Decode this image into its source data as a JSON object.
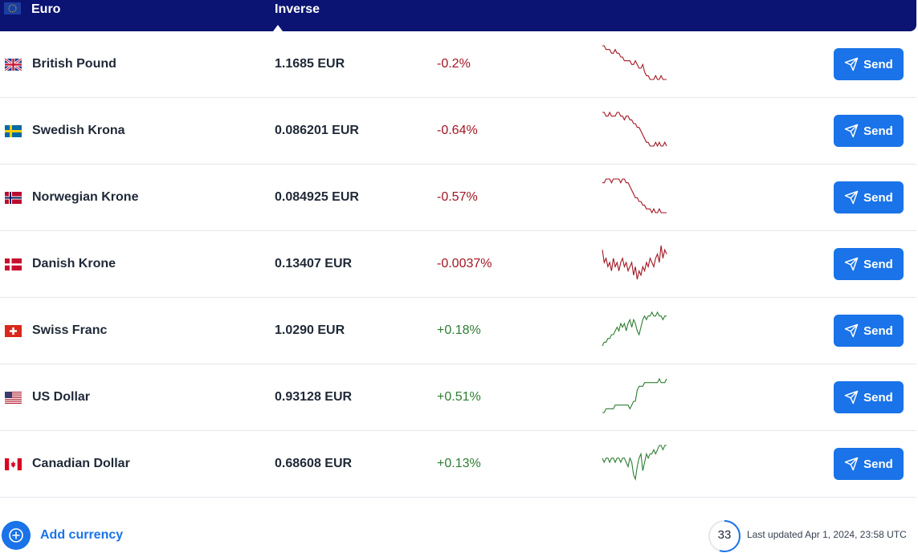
{
  "header": {
    "base_currency": "Euro",
    "inverse_label": "Inverse"
  },
  "rows": [
    {
      "name": "British Pound",
      "rate": "1.1685 EUR",
      "change": "-0.2%",
      "direction": "down",
      "flag": "gb-flag-icon",
      "action": "Send",
      "trend": [
        10,
        10,
        9,
        9,
        9,
        8,
        8,
        9,
        8,
        8,
        7,
        7,
        6,
        6,
        6,
        6,
        5,
        5,
        6,
        5,
        4,
        4,
        5,
        3,
        2,
        2,
        1,
        1,
        1,
        2,
        1,
        1,
        2,
        1,
        1,
        1
      ]
    },
    {
      "name": "Swedish Krona",
      "rate": "0.086201 EUR",
      "change": "-0.64%",
      "direction": "down",
      "flag": "se-flag-icon",
      "action": "Send",
      "trend": [
        10,
        10,
        9,
        9,
        10,
        9,
        9,
        9,
        10,
        10,
        9,
        9,
        8,
        9,
        9,
        8,
        8,
        7,
        7,
        6,
        6,
        5,
        4,
        3,
        2,
        2,
        1,
        1,
        1,
        2,
        1,
        2,
        1,
        1,
        2,
        1
      ]
    },
    {
      "name": "Norwegian Krone",
      "rate": "0.084925 EUR",
      "change": "-0.57%",
      "direction": "down",
      "flag": "no-flag-icon",
      "action": "Send",
      "trend": [
        9,
        9,
        10,
        10,
        10,
        9,
        10,
        10,
        10,
        10,
        9,
        10,
        10,
        9,
        9,
        8,
        7,
        6,
        5,
        5,
        4,
        4,
        3,
        3,
        2,
        2,
        2,
        1,
        2,
        1,
        1,
        2,
        1,
        1,
        1,
        1
      ]
    },
    {
      "name": "Danish Krone",
      "rate": "0.13407 EUR",
      "change": "-0.0037%",
      "direction": "down",
      "flag": "dk-flag-icon",
      "action": "Send",
      "trend": [
        8,
        5,
        6,
        4,
        5,
        3,
        6,
        4,
        5,
        3,
        5,
        6,
        4,
        5,
        3,
        4,
        5,
        2,
        4,
        1,
        3,
        2,
        4,
        3,
        5,
        4,
        6,
        5,
        4,
        6,
        7,
        5,
        9,
        6,
        8,
        7
      ]
    },
    {
      "name": "Swiss Franc",
      "rate": "1.0290 EUR",
      "change": "+0.18%",
      "direction": "up",
      "flag": "ch-flag-icon",
      "action": "Send",
      "trend": [
        1,
        2,
        2,
        3,
        3,
        4,
        4,
        5,
        6,
        5,
        7,
        6,
        7,
        5,
        7,
        8,
        6,
        8,
        7,
        5,
        4,
        6,
        8,
        9,
        8,
        9,
        9,
        10,
        9,
        9,
        10,
        9,
        9,
        8,
        9,
        9
      ]
    },
    {
      "name": "US Dollar",
      "rate": "0.93128 EUR",
      "change": "+0.51%",
      "direction": "up",
      "flag": "us-flag-icon",
      "action": "Send",
      "trend": [
        1,
        1,
        2,
        2,
        2,
        2,
        2,
        3,
        3,
        3,
        3,
        3,
        3,
        3,
        3,
        2,
        3,
        4,
        4,
        7,
        8,
        8,
        8,
        9,
        9,
        9,
        9,
        9,
        9,
        9,
        9,
        10,
        9,
        9,
        9,
        10
      ]
    },
    {
      "name": "Canadian Dollar",
      "rate": "0.68608 EUR",
      "change": "+0.13%",
      "direction": "up",
      "flag": "ca-flag-icon",
      "action": "Send",
      "trend": [
        6,
        5,
        6,
        6,
        5,
        6,
        6,
        5,
        6,
        6,
        5,
        6,
        6,
        5,
        4,
        6,
        5,
        2,
        1,
        4,
        6,
        7,
        3,
        5,
        7,
        6,
        7,
        7,
        8,
        7,
        8,
        9,
        9,
        8,
        9,
        9
      ]
    }
  ],
  "footer": {
    "add_label": "Add currency",
    "countdown": "33",
    "countdown_fraction": 0.55,
    "last_updated": "Last updated Apr 1, 2024, 23:58 UTC"
  },
  "colors": {
    "header_bg": "#0b1473",
    "accent": "#1a73e8",
    "negative": "#a21621",
    "positive": "#2e7d32"
  }
}
